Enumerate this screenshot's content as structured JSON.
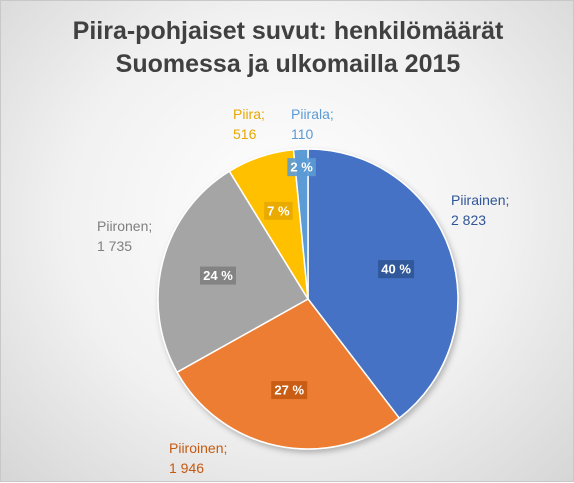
{
  "chart_data": {
    "type": "pie",
    "title_lines": [
      "Piira-pohjaiset suvut: henkilömäärät",
      "Suomessa ja ulkomailla 2015"
    ],
    "slices": [
      {
        "name": "Piirainen",
        "value": 2823,
        "value_label": "2 823",
        "percent_label": "40 %",
        "color": "#4472C4",
        "label_color": "#2F5597"
      },
      {
        "name": "Piiroinen",
        "value": 1946,
        "value_label": "1 946",
        "percent_label": "27 %",
        "color": "#ED7D31",
        "label_color": "#C55A11"
      },
      {
        "name": "Piironen",
        "value": 1735,
        "value_label": "1 735",
        "percent_label": "24 %",
        "color": "#A5A5A5",
        "label_color": "#7F7F7F"
      },
      {
        "name": "Piira",
        "value": 516,
        "value_label": "516",
        "percent_label": "7 %",
        "color": "#FFC000",
        "label_color": "#E8A800"
      },
      {
        "name": "Piirala",
        "value": 110,
        "value_label": "110",
        "percent_label": "2 %",
        "color": "#5B9BD5",
        "label_color": "#5B9BD5"
      }
    ],
    "legend": "none",
    "label_format": "{name};\n{value}"
  }
}
